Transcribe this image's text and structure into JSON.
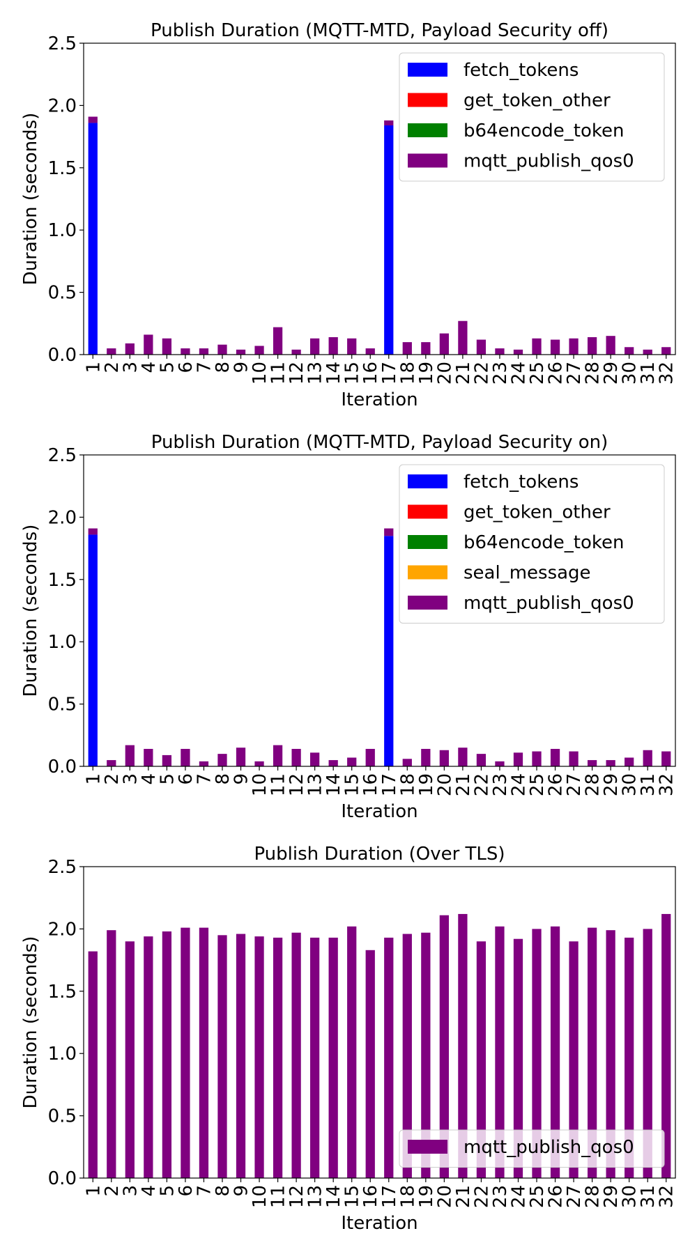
{
  "colors": {
    "fetch_tokens": "#0000ff",
    "get_token_other": "#ff0000",
    "b64encode_token": "#008000",
    "seal_message": "#ffa500",
    "mqtt_publish_qos0": "#800080"
  },
  "chart_data": [
    {
      "type": "bar",
      "stacked": true,
      "title": "Publish Duration (MQTT-MTD, Payload Security off)",
      "xlabel": "Iteration",
      "ylabel": "Duration (seconds)",
      "ylim": [
        0,
        2.5
      ],
      "yticks": [
        "0.0",
        "0.5",
        "1.0",
        "1.5",
        "2.0",
        "2.5"
      ],
      "grid": false,
      "legend_position": "top-right",
      "categories": [
        "1",
        "2",
        "3",
        "4",
        "5",
        "6",
        "7",
        "8",
        "9",
        "10",
        "11",
        "12",
        "13",
        "14",
        "15",
        "16",
        "17",
        "18",
        "19",
        "20",
        "21",
        "22",
        "23",
        "24",
        "25",
        "26",
        "27",
        "28",
        "29",
        "30",
        "31",
        "32"
      ],
      "series": [
        {
          "name": "fetch_tokens",
          "color": "#0000ff",
          "values": [
            1.86,
            0,
            0,
            0,
            0,
            0,
            0,
            0,
            0,
            0,
            0,
            0,
            0,
            0,
            0,
            0,
            1.84,
            0,
            0,
            0,
            0,
            0,
            0,
            0,
            0,
            0,
            0,
            0,
            0,
            0,
            0,
            0
          ]
        },
        {
          "name": "get_token_other",
          "color": "#ff0000",
          "values": [
            0,
            0,
            0,
            0,
            0,
            0,
            0,
            0,
            0,
            0,
            0,
            0,
            0,
            0,
            0,
            0,
            0,
            0,
            0,
            0,
            0,
            0,
            0,
            0,
            0,
            0,
            0,
            0,
            0,
            0,
            0,
            0
          ]
        },
        {
          "name": "b64encode_token",
          "color": "#008000",
          "values": [
            0,
            0,
            0,
            0,
            0,
            0,
            0,
            0,
            0,
            0,
            0,
            0,
            0,
            0,
            0,
            0,
            0,
            0,
            0,
            0,
            0,
            0,
            0,
            0,
            0,
            0,
            0,
            0,
            0,
            0,
            0,
            0
          ]
        },
        {
          "name": "mqtt_publish_qos0",
          "color": "#800080",
          "values": [
            0.05,
            0.05,
            0.09,
            0.16,
            0.13,
            0.05,
            0.05,
            0.08,
            0.04,
            0.07,
            0.22,
            0.04,
            0.13,
            0.14,
            0.13,
            0.05,
            0.04,
            0.1,
            0.1,
            0.17,
            0.27,
            0.12,
            0.05,
            0.04,
            0.13,
            0.12,
            0.13,
            0.14,
            0.15,
            0.06,
            0.04,
            0.06
          ]
        }
      ]
    },
    {
      "type": "bar",
      "stacked": true,
      "title": "Publish Duration (MQTT-MTD, Payload Security on)",
      "xlabel": "Iteration",
      "ylabel": "Duration (seconds)",
      "ylim": [
        0,
        2.5
      ],
      "yticks": [
        "0.0",
        "0.5",
        "1.0",
        "1.5",
        "2.0",
        "2.5"
      ],
      "grid": false,
      "legend_position": "top-right",
      "categories": [
        "1",
        "2",
        "3",
        "4",
        "5",
        "6",
        "7",
        "8",
        "9",
        "10",
        "11",
        "12",
        "13",
        "14",
        "15",
        "16",
        "17",
        "18",
        "19",
        "20",
        "21",
        "22",
        "23",
        "24",
        "25",
        "26",
        "27",
        "28",
        "29",
        "30",
        "31",
        "32"
      ],
      "series": [
        {
          "name": "fetch_tokens",
          "color": "#0000ff",
          "values": [
            1.86,
            0,
            0,
            0,
            0,
            0,
            0,
            0,
            0,
            0,
            0,
            0,
            0,
            0,
            0,
            0,
            1.85,
            0,
            0,
            0,
            0,
            0,
            0,
            0,
            0,
            0,
            0,
            0,
            0,
            0,
            0,
            0
          ]
        },
        {
          "name": "get_token_other",
          "color": "#ff0000",
          "values": [
            0,
            0,
            0,
            0,
            0,
            0,
            0,
            0,
            0,
            0,
            0,
            0,
            0,
            0,
            0,
            0,
            0,
            0,
            0,
            0,
            0,
            0,
            0,
            0,
            0,
            0,
            0,
            0,
            0,
            0,
            0,
            0
          ]
        },
        {
          "name": "b64encode_token",
          "color": "#008000",
          "values": [
            0,
            0,
            0,
            0,
            0,
            0,
            0,
            0,
            0,
            0,
            0,
            0,
            0,
            0,
            0,
            0,
            0,
            0,
            0,
            0,
            0,
            0,
            0,
            0,
            0,
            0,
            0,
            0,
            0,
            0,
            0,
            0
          ]
        },
        {
          "name": "seal_message",
          "color": "#ffa500",
          "values": [
            0,
            0,
            0,
            0,
            0,
            0,
            0,
            0,
            0,
            0,
            0,
            0,
            0,
            0,
            0,
            0,
            0,
            0,
            0,
            0,
            0,
            0,
            0,
            0,
            0,
            0,
            0,
            0,
            0,
            0,
            0,
            0
          ]
        },
        {
          "name": "mqtt_publish_qos0",
          "color": "#800080",
          "values": [
            0.05,
            0.05,
            0.17,
            0.14,
            0.09,
            0.14,
            0.04,
            0.1,
            0.15,
            0.04,
            0.17,
            0.14,
            0.11,
            0.05,
            0.07,
            0.14,
            0.06,
            0.06,
            0.14,
            0.13,
            0.15,
            0.1,
            0.04,
            0.11,
            0.12,
            0.14,
            0.12,
            0.05,
            0.05,
            0.07,
            0.13,
            0.12
          ]
        }
      ]
    },
    {
      "type": "bar",
      "stacked": false,
      "title": "Publish Duration (Over TLS)",
      "xlabel": "Iteration",
      "ylabel": "Duration (seconds)",
      "ylim": [
        0,
        2.5
      ],
      "yticks": [
        "0.0",
        "0.5",
        "1.0",
        "1.5",
        "2.0",
        "2.5"
      ],
      "grid": false,
      "legend_position": "bottom-right",
      "categories": [
        "1",
        "2",
        "3",
        "4",
        "5",
        "6",
        "7",
        "8",
        "9",
        "10",
        "11",
        "12",
        "13",
        "14",
        "15",
        "16",
        "17",
        "18",
        "19",
        "20",
        "21",
        "22",
        "23",
        "24",
        "25",
        "26",
        "27",
        "28",
        "29",
        "30",
        "31",
        "32"
      ],
      "series": [
        {
          "name": "mqtt_publish_qos0",
          "color": "#800080",
          "values": [
            1.82,
            1.99,
            1.9,
            1.94,
            1.98,
            2.01,
            2.01,
            1.95,
            1.96,
            1.94,
            1.93,
            1.97,
            1.93,
            1.93,
            2.02,
            1.83,
            1.93,
            1.96,
            1.97,
            2.11,
            2.12,
            1.9,
            2.02,
            1.92,
            2.0,
            2.02,
            1.9,
            2.01,
            1.99,
            1.93,
            2.0,
            2.12
          ]
        }
      ]
    }
  ]
}
